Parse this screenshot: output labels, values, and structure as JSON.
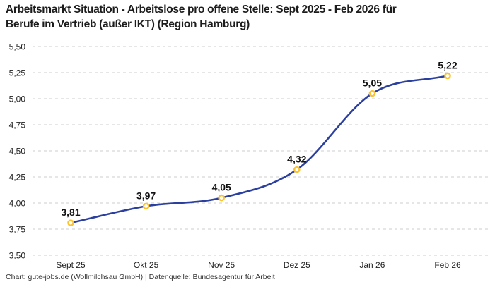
{
  "header": {
    "title_line1": "Arbeitsmarkt Situation - Arbeitslose pro offene Stelle: Sept 2025 - Feb 2026 für",
    "title_line2": "Berufe im Vertrieb (außer IKT) (Region Hamburg)"
  },
  "footer": {
    "credit": "Chart: gute-jobs.de (Wollmilchsau GmbH) | Datenquelle: Bundesagentur für Arbeit"
  },
  "chart_data": {
    "type": "line",
    "title": "Arbeitsmarkt Situation - Arbeitslose pro offene Stelle: Sept 2025 - Feb 2026 für Berufe im Vertrieb (außer IKT) (Region Hamburg)",
    "categories": [
      "Sept 25",
      "Okt 25",
      "Nov 25",
      "Dez 25",
      "Jan 26",
      "Feb 26"
    ],
    "values": [
      3.81,
      3.97,
      4.05,
      4.32,
      5.05,
      5.22
    ],
    "value_labels": [
      "3,81",
      "3,97",
      "4,05",
      "4,32",
      "5,05",
      "5,22"
    ],
    "y_ticks": [
      "5,50",
      "5,25",
      "5,00",
      "4,75",
      "4,50",
      "4,25",
      "4,00",
      "3,75",
      "3,50"
    ],
    "y_tick_values": [
      5.5,
      5.25,
      5.0,
      4.75,
      4.5,
      4.25,
      4.0,
      3.75,
      3.5
    ],
    "ylim": [
      3.5,
      5.5
    ],
    "xlabel": "",
    "ylabel": "",
    "legend": "none",
    "grid": "horizontal-dashed",
    "curve": "smooth",
    "colors": {
      "line": "#2b3f9e",
      "marker_ring": "#fdc32f",
      "marker_fill": "#ffffff",
      "grid": "#cccccc",
      "tick_text": "#222222",
      "value_label": "#111111",
      "title_text": "#1c1c1c",
      "footer_text": "#333333"
    }
  }
}
